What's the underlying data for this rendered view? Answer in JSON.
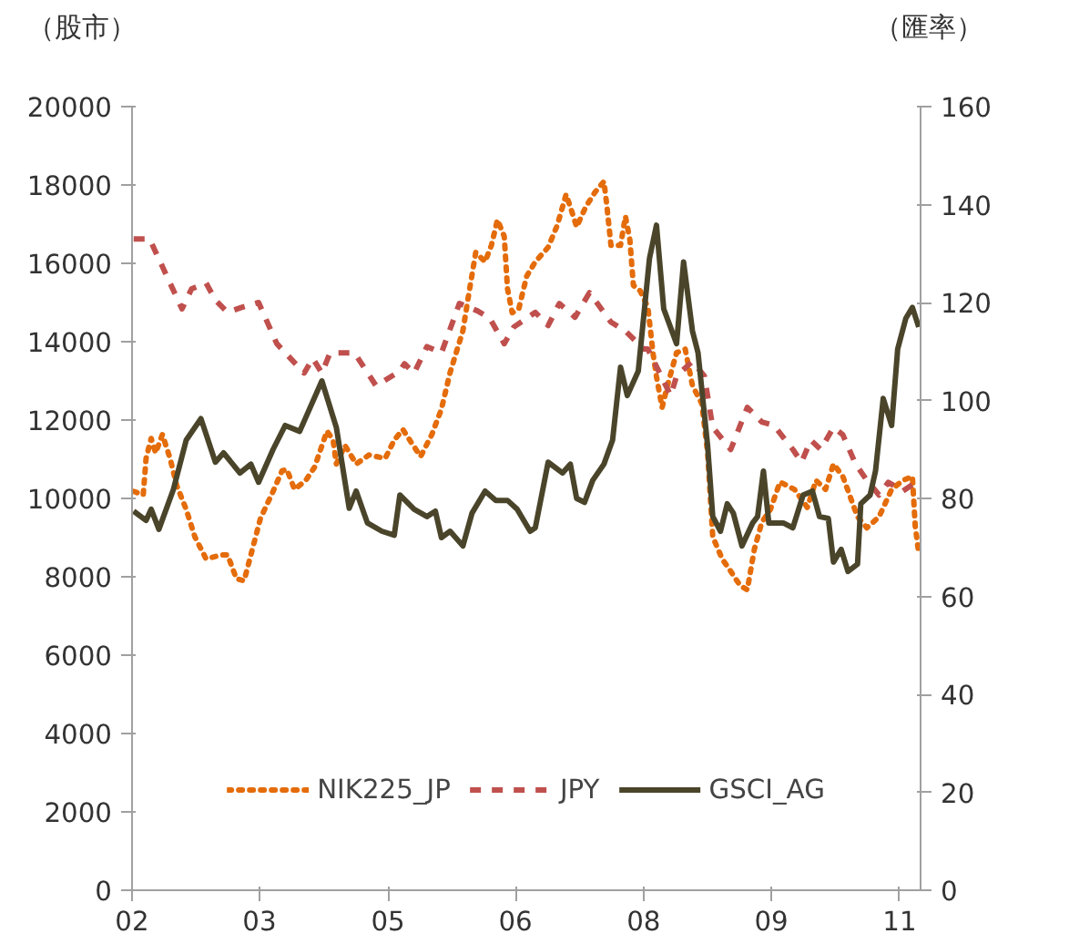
{
  "chart_data": {
    "type": "line",
    "ylabel": "（股市）",
    "y2label": "（匯率）",
    "xlim": [
      "2002-01",
      "2011-04"
    ],
    "xticks": [
      {
        "value": "2002-01",
        "label": "02"
      },
      {
        "value": "2003-07",
        "label": "03"
      },
      {
        "value": "2005-01",
        "label": "05"
      },
      {
        "value": "2006-07",
        "label": "06"
      },
      {
        "value": "2008-01",
        "label": "08"
      },
      {
        "value": "2009-07",
        "label": "09"
      },
      {
        "value": "2011-01",
        "label": "11"
      }
    ],
    "ylim": [
      0,
      20000
    ],
    "yticks": [
      0,
      2000,
      4000,
      6000,
      8000,
      10000,
      12000,
      14000,
      16000,
      18000,
      20000
    ],
    "y2lim": [
      0,
      160
    ],
    "y2ticks": [
      0,
      20,
      40,
      60,
      80,
      100,
      120,
      140,
      160
    ],
    "grid": false,
    "legend": "bottom",
    "marker": "none",
    "series": [
      {
        "name": "NIK225_JP",
        "color": "#e46c0a",
        "line_style": "dotted",
        "x": [
          "2002-01-08",
          "2002-02-18",
          "2002-03-02",
          "2002-03-24",
          "2002-04-12",
          "2002-05-11",
          "2002-06-13",
          "2002-07-12",
          "2002-08-21",
          "2002-09-27",
          "2002-11-14",
          "2003-01-23",
          "2003-02-14",
          "2003-03-24",
          "2003-04-26",
          "2003-05-25",
          "2003-07-05",
          "2003-08-28",
          "2003-10-05",
          "2003-10-26",
          "2003-11-28",
          "2004-01-15",
          "2004-02-21",
          "2004-04-15",
          "2004-05-11",
          "2004-05-25",
          "2004-07-01",
          "2004-08-18",
          "2004-10-12",
          "2004-12-20",
          "2005-01-28",
          "2005-03-06",
          "2005-04-15",
          "2005-05-21",
          "2005-07-08",
          "2005-08-18",
          "2005-09-24",
          "2005-11-18",
          "2005-12-13",
          "2006-01-12",
          "2006-02-21",
          "2006-03-20",
          "2006-04-15",
          "2006-05-14",
          "2006-05-28",
          "2006-06-17",
          "2006-07-15",
          "2006-08-18",
          "2006-09-24",
          "2006-11-18",
          "2006-12-27",
          "2007-02-03",
          "2007-03-06",
          "2007-03-20",
          "2007-04-28",
          "2007-06-06",
          "2007-07-15",
          "2007-07-28",
          "2007-08-14",
          "2007-09-24",
          "2007-10-15",
          "2007-11-03",
          "2007-11-18",
          "2007-12-17",
          "2008-01-19",
          "2008-02-11",
          "2008-02-25",
          "2008-03-20",
          "2008-04-12",
          "2008-05-21",
          "2008-06-27",
          "2008-07-28",
          "2008-09-06",
          "2008-10-01",
          "2008-10-23",
          "2008-12-02",
          "2009-01-08",
          "2009-02-18",
          "2009-03-20",
          "2009-04-19",
          "2009-05-21",
          "2009-06-27",
          "2009-08-07",
          "2009-10-08",
          "2009-12-02",
          "2010-01-08",
          "2010-02-18",
          "2010-03-24",
          "2010-05-03",
          "2010-07-05",
          "2010-08-14",
          "2010-10-05",
          "2010-11-28",
          "2011-01-15",
          "2011-02-25",
          "2011-03-09",
          "2011-03-24"
        ],
        "values": [
          10180,
          10090,
          11020,
          11530,
          11160,
          11630,
          11020,
          10320,
          9720,
          9020,
          8460,
          8560,
          8560,
          7950,
          7900,
          8560,
          9490,
          10180,
          10700,
          10740,
          10230,
          10460,
          10790,
          11720,
          11490,
          10880,
          11350,
          10880,
          11110,
          11020,
          11490,
          11760,
          11390,
          11070,
          11630,
          12280,
          13210,
          14280,
          15210,
          16280,
          16040,
          16460,
          17110,
          16690,
          15350,
          14740,
          14830,
          15670,
          16040,
          16410,
          16970,
          17760,
          17200,
          16930,
          17440,
          17810,
          18090,
          17440,
          16460,
          16460,
          17200,
          16600,
          15440,
          15300,
          14880,
          13670,
          13110,
          12320,
          12880,
          13720,
          13810,
          12880,
          12420,
          11160,
          9020,
          8460,
          8140,
          7770,
          7670,
          8700,
          9390,
          9720,
          10420,
          10230,
          9770,
          10460,
          10230,
          10880,
          10560,
          9530,
          9250,
          9530,
          10230,
          10460,
          10560,
          9300,
          8600
        ]
      },
      {
        "name": "JPY",
        "color": "#c0504d",
        "line_style": "dashed",
        "axis": "y2",
        "x": [
          "2002-01-08",
          "2002-03-17",
          "2002-08-03",
          "2002-09-13",
          "2002-11-14",
          "2002-12-24",
          "2003-02-14",
          "2003-04-15",
          "2003-06-27",
          "2003-09-13",
          "2004-01-08",
          "2004-02-14",
          "2004-03-24",
          "2004-04-28",
          "2004-08-11",
          "2004-11-11",
          "2005-02-21",
          "2005-03-13",
          "2005-04-23",
          "2005-06-17",
          "2005-08-18",
          "2005-11-03",
          "2006-01-19",
          "2006-03-13",
          "2006-05-14",
          "2006-06-24",
          "2006-09-24",
          "2006-11-18",
          "2007-01-05",
          "2007-03-13",
          "2007-05-14",
          "2007-08-14",
          "2007-10-15",
          "2008-01-01",
          "2008-01-19",
          "2008-04-26",
          "2008-05-21",
          "2008-07-28",
          "2008-09-17",
          "2008-10-23",
          "2009-01-08",
          "2009-03-20",
          "2009-05-21",
          "2009-07-12",
          "2009-10-01",
          "2009-11-07",
          "2009-12-17",
          "2010-01-28",
          "2010-03-24",
          "2010-05-03",
          "2010-06-27",
          "2010-08-14",
          "2010-10-05",
          "2010-11-14",
          "2011-01-15",
          "2011-03-24"
        ],
        "values": [
          133,
          133,
          118.7,
          122.8,
          124,
          120.5,
          118,
          119,
          120,
          111.6,
          105.6,
          108.6,
          105.6,
          109.7,
          109.7,
          103,
          106,
          107.5,
          105.6,
          111,
          109.7,
          119.8,
          118.3,
          116.8,
          111.6,
          115,
          118,
          115.3,
          119.8,
          117,
          122,
          116,
          114.2,
          110.5,
          110.5,
          101,
          105,
          108,
          105,
          94.5,
          90,
          98.6,
          95.6,
          94.9,
          90,
          87.4,
          91.9,
          90,
          94.5,
          93,
          87,
          83.7,
          80.7,
          83.3,
          81.5,
          83.7
        ]
      },
      {
        "name": "GSCI_AG",
        "color": "#4a452a",
        "line_style": "solid",
        "axis": "y2",
        "x": [
          "2002-01-08",
          "2002-03-02",
          "2002-03-24",
          "2002-04-26",
          "2002-06-27",
          "2002-08-21",
          "2002-10-23",
          "2002-12-24",
          "2003-01-28",
          "2003-04-08",
          "2003-05-25",
          "2003-06-27",
          "2003-08-28",
          "2003-10-19",
          "2003-12-20",
          "2004-03-24",
          "2004-05-25",
          "2004-07-19",
          "2004-08-18",
          "2004-10-05",
          "2004-12-06",
          "2005-01-28",
          "2005-02-21",
          "2005-04-23",
          "2005-06-17",
          "2005-07-23",
          "2005-08-18",
          "2005-09-24",
          "2005-11-18",
          "2005-12-27",
          "2006-02-21",
          "2006-04-08",
          "2006-05-28",
          "2006-07-08",
          "2006-09-02",
          "2006-09-24",
          "2006-11-18",
          "2007-01-19",
          "2007-02-21",
          "2007-03-20",
          "2007-04-23",
          "2007-05-28",
          "2007-07-15",
          "2007-08-21",
          "2007-09-24",
          "2007-10-23",
          "2007-12-09",
          "2008-01-26",
          "2008-02-25",
          "2008-03-27",
          "2008-05-21",
          "2008-06-20",
          "2008-07-28",
          "2008-08-21",
          "2008-10-01",
          "2008-10-23",
          "2008-11-25",
          "2008-12-24",
          "2009-01-19",
          "2009-02-25",
          "2009-04-12",
          "2009-05-03",
          "2009-05-28",
          "2009-06-20",
          "2009-08-21",
          "2009-10-01",
          "2009-11-14",
          "2009-12-24",
          "2010-01-23",
          "2010-03-02",
          "2010-03-24",
          "2010-04-26",
          "2010-05-25",
          "2010-07-05",
          "2010-07-19",
          "2010-08-28",
          "2010-09-20",
          "2010-10-23",
          "2010-11-28",
          "2010-12-24",
          "2011-01-28",
          "2011-02-25",
          "2011-03-24"
        ],
        "values": [
          77.4,
          75.5,
          77.8,
          73.7,
          81.8,
          91.9,
          96.3,
          87.4,
          89.3,
          85.2,
          87,
          83.3,
          90,
          94.9,
          93.7,
          104,
          94.5,
          78,
          81.5,
          75,
          73.3,
          72.5,
          80.7,
          77.8,
          76.3,
          77.4,
          72,
          73.3,
          70.3,
          77,
          81.5,
          79.6,
          79.6,
          77.8,
          73.3,
          74,
          87.4,
          85.2,
          87,
          80,
          79.2,
          83.7,
          87,
          91.9,
          106.8,
          101,
          106,
          129,
          135.8,
          118.7,
          111.6,
          128.3,
          114.2,
          109.7,
          90.8,
          76.3,
          73.3,
          78.9,
          77,
          70.3,
          75,
          76.3,
          85.6,
          75,
          75,
          74,
          80.7,
          81.5,
          76.3,
          75.9,
          67,
          69.6,
          65.1,
          66.6,
          78.9,
          80.7,
          85.6,
          100.4,
          94.9,
          110.5,
          116.8,
          119,
          115
        ]
      }
    ]
  }
}
